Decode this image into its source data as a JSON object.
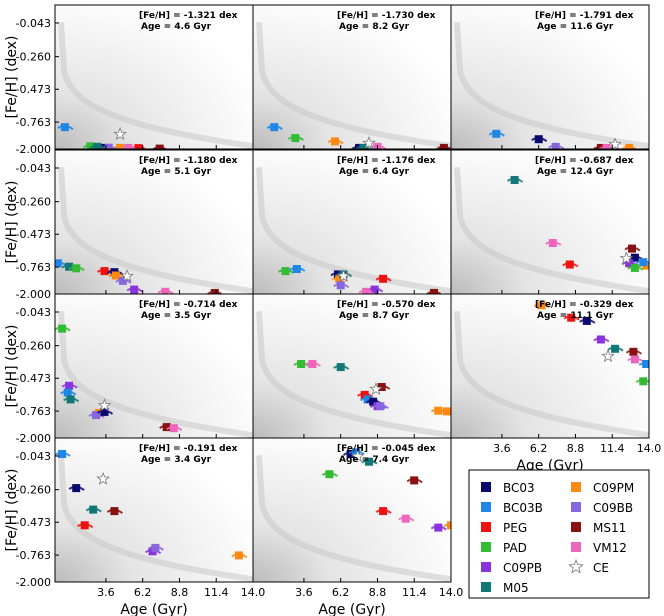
{
  "chart_data": {
    "type": "scatter",
    "title": "",
    "xlabel": "Age (Gyr)",
    "ylabel": "[Fe/H] (dex)",
    "xlim": [
      0.0,
      14.0
    ],
    "x_ticks": [
      "3.6",
      "6.2",
      "8.8",
      "11.4",
      "14.0"
    ],
    "y_ticks": [
      "-0.043",
      "-0.260",
      "-0.473",
      "-0.763",
      "-2.000"
    ],
    "legend": [
      {
        "name": "BC03",
        "color": "#0a0a6e",
        "marker": "square"
      },
      {
        "name": "BC03B",
        "color": "#1f86e6",
        "marker": "square"
      },
      {
        "name": "PEG",
        "color": "#ee1111",
        "marker": "square"
      },
      {
        "name": "PAD",
        "color": "#33bb33",
        "marker": "square"
      },
      {
        "name": "C09PB",
        "color": "#8833dd",
        "marker": "square"
      },
      {
        "name": "M05",
        "color": "#117777",
        "marker": "square"
      },
      {
        "name": "C09PM",
        "color": "#ff8811",
        "marker": "square"
      },
      {
        "name": "C09BB",
        "color": "#8866dd",
        "marker": "square"
      },
      {
        "name": "MS11",
        "color": "#881111",
        "marker": "square"
      },
      {
        "name": "VM12",
        "color": "#ee66bb",
        "marker": "square"
      },
      {
        "name": "CE",
        "color": "#ffffff",
        "marker": "star"
      }
    ],
    "panels": [
      {
        "feh_label": "[Fe/H] = -1.321 dex",
        "age_label": "Age = 4.6 Gyr",
        "true_age": 4.6,
        "true_feh": -1.321,
        "points": [
          [
            "BC03",
            3.3,
            -1.95
          ],
          [
            "BC03B",
            0.7,
            -1.0
          ],
          [
            "PEG",
            5.9,
            -1.96
          ],
          [
            "PAD",
            2.5,
            -1.88
          ],
          [
            "C09PM",
            4.6,
            -1.95
          ],
          [
            "C09BB",
            3.8,
            -1.94
          ],
          [
            "MS11",
            7.4,
            -1.98
          ],
          [
            "VM12",
            5.2,
            -1.95
          ],
          [
            "M05",
            3.0,
            -1.9
          ]
        ]
      },
      {
        "feh_label": "[Fe/H] = -1.730 dex",
        "age_label": "Age = 8.2 Gyr",
        "true_age": 8.2,
        "true_feh": -1.73,
        "points": [
          [
            "BC03B",
            1.5,
            -1.0
          ],
          [
            "PAD",
            3.0,
            -1.5
          ],
          [
            "C09PM",
            5.8,
            -1.65
          ],
          [
            "MS11",
            13.5,
            -1.95
          ],
          [
            "VM12",
            8.8,
            -1.9
          ],
          [
            "BC03",
            7.5,
            -1.95
          ],
          [
            "M05",
            7.8,
            -1.95
          ]
        ]
      },
      {
        "feh_label": "[Fe/H] = -1.791 dex",
        "age_label": "Age = 11.6 Gyr",
        "true_age": 11.6,
        "true_feh": -1.791,
        "points": [
          [
            "BC03B",
            3.2,
            -1.3
          ],
          [
            "BC03",
            6.2,
            -1.55
          ],
          [
            "C09BB",
            7.4,
            -1.9
          ],
          [
            "MS11",
            10.6,
            -1.95
          ],
          [
            "VM12",
            11.0,
            -1.95
          ],
          [
            "C09PM",
            12.6,
            -1.95
          ]
        ]
      },
      {
        "feh_label": "[Fe/H] = -1.180 dex",
        "age_label": "Age = 5.1 Gyr",
        "true_age": 5.1,
        "true_feh": -1.18,
        "points": [
          [
            "BC03B",
            0.2,
            -0.73
          ],
          [
            "M05",
            1.0,
            -0.76
          ],
          [
            "PAD",
            1.5,
            -0.82
          ],
          [
            "PEG",
            3.5,
            -0.95
          ],
          [
            "BC03",
            4.2,
            -1.0
          ],
          [
            "C09PM",
            4.3,
            -1.15
          ],
          [
            "C09BB",
            4.8,
            -1.4
          ],
          [
            "C09PB",
            5.6,
            -1.8
          ],
          [
            "VM12",
            7.8,
            -1.9
          ],
          [
            "MS11",
            11.3,
            -1.95
          ]
        ]
      },
      {
        "feh_label": "[Fe/H] = -1.176 dex",
        "age_label": "Age = 6.4 Gyr",
        "true_age": 6.4,
        "true_feh": -1.176,
        "points": [
          [
            "PAD",
            2.3,
            -0.95
          ],
          [
            "BC03B",
            3.1,
            -0.85
          ],
          [
            "BC03",
            6.0,
            -1.1
          ],
          [
            "C09PM",
            6.1,
            -1.3
          ],
          [
            "C09BB",
            6.2,
            -1.6
          ],
          [
            "M05",
            6.4,
            -1.1
          ],
          [
            "PEG",
            9.2,
            -1.3
          ],
          [
            "C09PB",
            8.6,
            -1.8
          ],
          [
            "VM12",
            8.0,
            -1.9
          ],
          [
            "MS11",
            12.8,
            -1.95
          ]
        ]
      },
      {
        "feh_label": "[Fe/H] = -0.687 dex",
        "age_label": "Age = 12.4 Gyr",
        "true_age": 12.4,
        "true_feh": -0.687,
        "points": [
          [
            "M05",
            4.5,
            -0.12
          ],
          [
            "VM12",
            7.2,
            -0.55
          ],
          [
            "PEG",
            8.4,
            -0.74
          ],
          [
            "MS11",
            12.8,
            -0.6
          ],
          [
            "BC03",
            13.0,
            -0.68
          ],
          [
            "C09PB",
            12.6,
            -0.73
          ],
          [
            "PAD",
            13.0,
            -0.8
          ],
          [
            "C09PM",
            13.8,
            -0.75
          ],
          [
            "BC03B",
            13.6,
            -0.72
          ]
        ]
      },
      {
        "feh_label": "[Fe/H] = -0.714 dex",
        "age_label": "Age = 3.5 Gyr",
        "true_age": 3.5,
        "true_feh": -0.714,
        "points": [
          [
            "PAD",
            0.5,
            -0.15
          ],
          [
            "C09PB",
            1.0,
            -0.54
          ],
          [
            "BC03B",
            0.9,
            -0.6
          ],
          [
            "M05",
            1.1,
            -0.66
          ],
          [
            "C09PM",
            3.1,
            -0.85
          ],
          [
            "C09BB",
            2.9,
            -0.95
          ],
          [
            "BC03",
            3.5,
            -0.8
          ],
          [
            "MS11",
            7.9,
            -1.5
          ],
          [
            "VM12",
            8.4,
            -1.55
          ]
        ]
      },
      {
        "feh_label": "[Fe/H] = -0.570 dex",
        "age_label": "Age = 8.7 Gyr",
        "true_age": 8.7,
        "true_feh": -0.57,
        "points": [
          [
            "PAD",
            3.4,
            -0.38
          ],
          [
            "VM12",
            4.2,
            -0.38
          ],
          [
            "M05",
            6.2,
            -0.4
          ],
          [
            "PEG",
            7.9,
            -0.62
          ],
          [
            "MS11",
            9.1,
            -0.55
          ],
          [
            "BC03B",
            8.1,
            -0.66
          ],
          [
            "BC03",
            8.5,
            -0.68
          ],
          [
            "C09PB",
            8.8,
            -0.72
          ],
          [
            "C09BB",
            9.0,
            -0.72
          ],
          [
            "C09PM",
            13.1,
            -0.76
          ],
          [
            "C09PM",
            13.7,
            -0.78
          ]
        ]
      },
      {
        "feh_label": "[Fe/H] = -0.329 dex",
        "age_label": "Age = 11.1 Gyr",
        "true_age": 11.1,
        "true_feh": -0.329,
        "points": [
          [
            "C09PM",
            6.4,
            0.0
          ],
          [
            "PEG",
            8.5,
            -0.08
          ],
          [
            "BC03",
            9.6,
            -0.1
          ],
          [
            "C09PB",
            10.6,
            -0.22
          ],
          [
            "M05",
            11.6,
            -0.28
          ],
          [
            "MS11",
            12.9,
            -0.3
          ],
          [
            "VM12",
            13.0,
            -0.35
          ],
          [
            "PAD",
            13.6,
            -0.5
          ],
          [
            "BC03B",
            13.8,
            -0.38
          ]
        ]
      },
      {
        "feh_label": "[Fe/H] = -0.191 dex",
        "age_label": "Age = 3.4 Gyr",
        "true_age": 3.4,
        "true_feh": -0.191,
        "points": [
          [
            "BC03",
            1.5,
            -0.25
          ],
          [
            "BC03B",
            0.5,
            -0.03
          ],
          [
            "M05",
            2.7,
            -0.39
          ],
          [
            "MS11",
            4.2,
            -0.4
          ],
          [
            "C09PB",
            6.9,
            -0.73
          ],
          [
            "C09BB",
            7.1,
            -0.7
          ],
          [
            "C09PM",
            13.0,
            -0.78
          ],
          [
            "PEG",
            2.1,
            -0.5
          ]
        ]
      },
      {
        "feh_label": "[Fe/H] = -0.045 dex",
        "age_label": "Age = 7.4 Gyr",
        "true_age": 7.4,
        "true_feh": -0.045,
        "points": [
          [
            "BC03",
            6.9,
            -0.03
          ],
          [
            "BC03B",
            7.3,
            -0.02
          ],
          [
            "M05",
            8.2,
            -0.08
          ],
          [
            "PAD",
            5.4,
            -0.16
          ],
          [
            "MS11",
            11.4,
            -0.2
          ],
          [
            "PEG",
            9.2,
            -0.4
          ],
          [
            "VM12",
            10.8,
            -0.45
          ],
          [
            "C09PB",
            13.1,
            -0.52
          ],
          [
            "C09PM",
            14.0,
            -0.5
          ]
        ]
      }
    ]
  }
}
